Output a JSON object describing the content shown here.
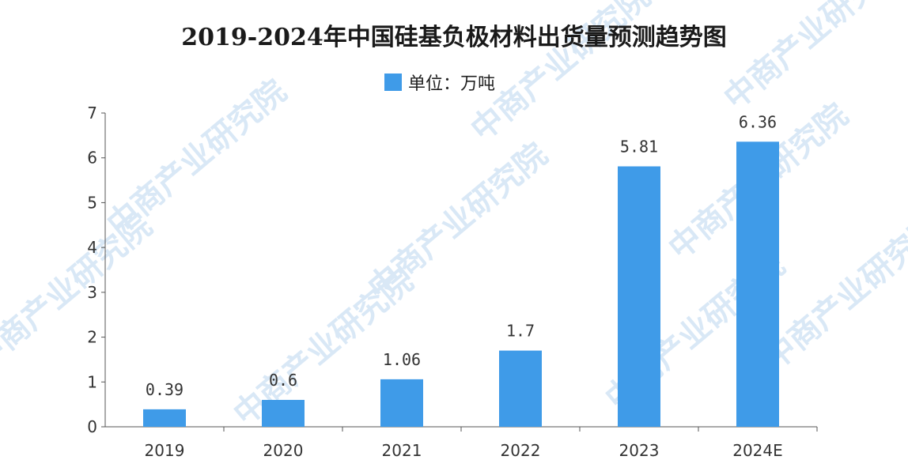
{
  "chart_data": {
    "type": "bar",
    "title": "2019-2024年中国硅基负极材料出货量预测趋势图",
    "legend_label": "单位：万吨",
    "categories": [
      "2019",
      "2020",
      "2021",
      "2022",
      "2023",
      "2024E"
    ],
    "values": [
      0.39,
      0.6,
      1.06,
      1.7,
      5.81,
      6.36
    ],
    "value_labels": [
      "0.39",
      "0.6",
      "1.06",
      "1.7",
      "5.81",
      "6.36"
    ],
    "yticks": [
      "0",
      "1",
      "2",
      "3",
      "4",
      "5",
      "6",
      "7"
    ],
    "ylim": [
      0,
      7
    ],
    "bar_color": "#3f9be8",
    "legend_position": "top-center",
    "grid": false
  },
  "watermark": "中商产业研究院"
}
